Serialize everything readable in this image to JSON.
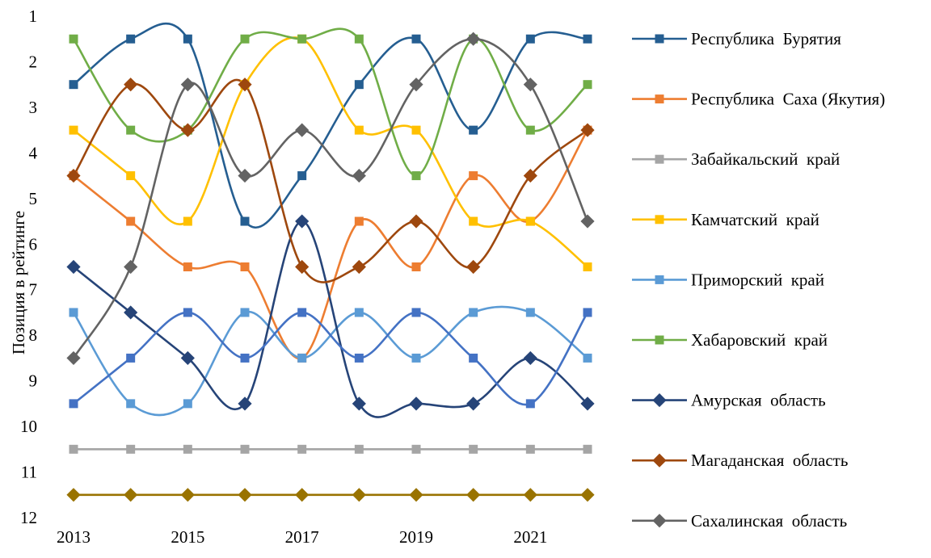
{
  "chart_data": {
    "type": "line",
    "title": "",
    "xlabel": "",
    "ylabel": "Позиция в рейтинге",
    "x": [
      2013,
      2014,
      2015,
      2016,
      2017,
      2018,
      2019,
      2020,
      2021,
      2022
    ],
    "x_tick_labels": [
      "2013",
      "2015",
      "2017",
      "2019",
      "2021"
    ],
    "x_tick_values": [
      2013,
      2015,
      2017,
      2019,
      2021
    ],
    "xlim": [
      2013,
      2022
    ],
    "ylim": [
      1,
      12
    ],
    "y_reversed": true,
    "y_tick_labels": [
      "1",
      "2",
      "3",
      "4",
      "5",
      "6",
      "7",
      "8",
      "9",
      "10",
      "11",
      "12"
    ],
    "y_tick_values": [
      1,
      2,
      3,
      4,
      5,
      6,
      7,
      8,
      9,
      10,
      11,
      12
    ],
    "smoothed": true,
    "grid": false,
    "legend_position": "right",
    "series": [
      {
        "name": "Республика  Бурятия",
        "color": "#255E91",
        "marker": "square",
        "values": [
          2.5,
          1.5,
          1.5,
          5.5,
          4.5,
          2.5,
          1.5,
          3.5,
          1.5,
          1.5
        ]
      },
      {
        "name": "Республика  Саха (Якутия)",
        "color": "#ED7D31",
        "marker": "square",
        "values": [
          4.5,
          5.5,
          6.5,
          6.5,
          8.5,
          5.5,
          6.5,
          4.5,
          5.5,
          3.5
        ]
      },
      {
        "name": "Забайкальский  край",
        "color": "#A5A5A5",
        "marker": "square",
        "values": [
          10.5,
          10.5,
          10.5,
          10.5,
          10.5,
          10.5,
          10.5,
          10.5,
          10.5,
          10.5
        ]
      },
      {
        "name": "Камчатский  край",
        "color": "#FFC000",
        "marker": "square",
        "values": [
          3.5,
          4.5,
          5.5,
          2.5,
          1.5,
          3.5,
          3.5,
          5.5,
          5.5,
          6.5
        ]
      },
      {
        "name": "Приморский  край",
        "color": "#5B9BD5",
        "marker": "square",
        "values": [
          7.5,
          9.5,
          9.5,
          7.5,
          8.5,
          7.5,
          8.5,
          7.5,
          7.5,
          8.5
        ]
      },
      {
        "name": "Хабаровский  край",
        "color": "#70AD47",
        "marker": "square",
        "values": [
          1.5,
          3.5,
          3.5,
          1.5,
          1.5,
          1.5,
          4.5,
          1.5,
          3.5,
          2.5
        ]
      },
      {
        "name": "Амурская  область",
        "color": "#264478",
        "marker": "diamond",
        "values": [
          6.5,
          7.5,
          8.5,
          9.5,
          5.5,
          9.5,
          9.5,
          9.5,
          8.5,
          9.5
        ]
      },
      {
        "name": "Магаданская  область",
        "color": "#9E480E",
        "marker": "diamond",
        "values": [
          4.5,
          2.5,
          3.5,
          2.5,
          6.5,
          6.5,
          5.5,
          6.5,
          4.5,
          3.5
        ]
      },
      {
        "name": "Сахалинская  область",
        "color": "#636363",
        "marker": "diamond",
        "values": [
          8.5,
          6.5,
          2.5,
          4.5,
          3.5,
          4.5,
          2.5,
          1.5,
          2.5,
          5.5
        ]
      },
      {
        "name": "",
        "color": "#4472C4",
        "marker": "square",
        "in_legend": false,
        "values": [
          9.5,
          8.5,
          7.5,
          8.5,
          7.5,
          8.5,
          7.5,
          8.5,
          9.5,
          7.5
        ]
      },
      {
        "name": "",
        "color": "#997300",
        "marker": "diamond",
        "in_legend": false,
        "values": [
          11.5,
          11.5,
          11.5,
          11.5,
          11.5,
          11.5,
          11.5,
          11.5,
          11.5,
          11.5
        ]
      }
    ]
  }
}
